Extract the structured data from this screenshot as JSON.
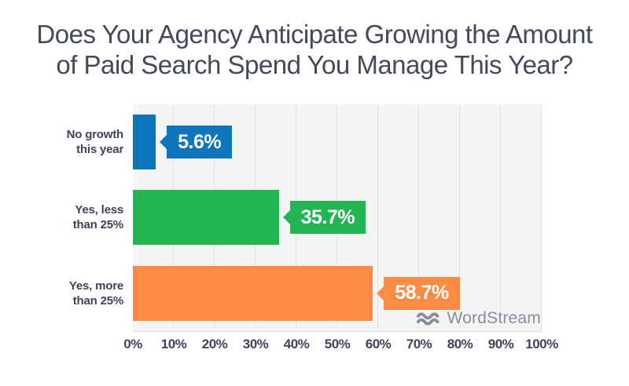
{
  "title": {
    "line1": "Does Your Agency Anticipate Growing the Amount",
    "line2": "of Paid Search Spend You Manage This Year?"
  },
  "watermark": {
    "icon": "waves-icon",
    "text": "WordStream",
    "color": "#878d9b"
  },
  "colors": {
    "plot_background": "#f4f4f5",
    "gridline": "#e4e4e7",
    "text": "#454a59",
    "blue": "#0d76bb",
    "green": "#21b554",
    "orange": "#fc8c44"
  },
  "chart_data": {
    "type": "bar",
    "orientation": "horizontal",
    "title": "Does Your Agency Anticipate Growing the Amount of Paid Search Spend You Manage This Year?",
    "categories": [
      "No growth this year",
      "Yes, less than 25%",
      "Yes, more than 25%"
    ],
    "values": [
      5.6,
      35.7,
      58.7
    ],
    "xlim": [
      0,
      100
    ],
    "grid": true,
    "legend": "none",
    "x_ticks": [
      "0%",
      "10%",
      "20%",
      "30%",
      "40%",
      "50%",
      "60%",
      "70%",
      "80%",
      "90%",
      "100%"
    ],
    "rows": [
      {
        "label_line1": "No growth",
        "label_line2": "this year",
        "category": "No growth this year",
        "value": 5.6,
        "label": "5.6%",
        "color": "#0d76bb"
      },
      {
        "label_line1": "Yes, less",
        "label_line2": "than 25%",
        "category": "Yes, less than 25%",
        "value": 35.7,
        "label": "35.7%",
        "color": "#21b554"
      },
      {
        "label_line1": "Yes, more",
        "label_line2": "than 25%",
        "category": "Yes, more than 25%",
        "value": 58.7,
        "label": "58.7%",
        "color": "#fc8c44"
      }
    ]
  }
}
